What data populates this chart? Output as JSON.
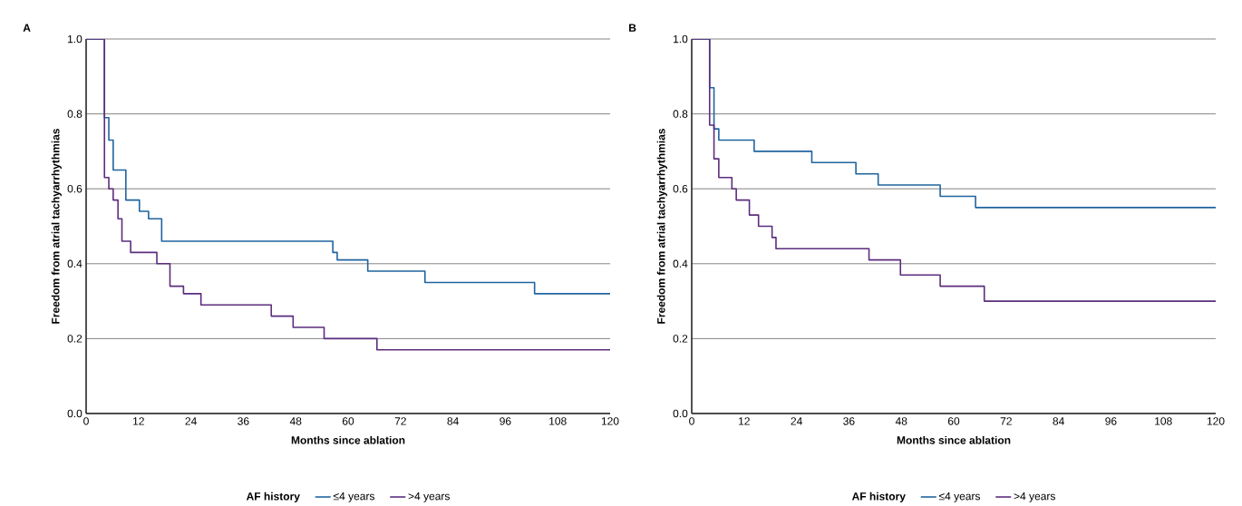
{
  "chart_data": [
    {
      "type": "step",
      "title": "A",
      "xlabel": "Months since ablation",
      "ylabel": "Freedom from atrial tachyarrhythmias",
      "legend_title": "AF history",
      "legend": "bottom",
      "grid": "y",
      "xlim": [
        0,
        120
      ],
      "ylim": [
        0,
        1
      ],
      "xticks": [
        0,
        12,
        24,
        36,
        48,
        60,
        72,
        84,
        96,
        108,
        120
      ],
      "yticks": [
        {
          "value": 0,
          "label": "0.0"
        },
        {
          "value": 0.2,
          "label": "0.2"
        },
        {
          "value": 0.4,
          "label": "0.4"
        },
        {
          "value": 0.6,
          "label": "0.6"
        },
        {
          "value": 0.8,
          "label": "0.8"
        },
        {
          "value": 1,
          "label": "1.0"
        }
      ],
      "series": [
        {
          "name": "≤4 years",
          "color": "#1f64a0",
          "x": [
            0,
            4.2,
            5.2,
            6.2,
            9.1,
            12.2,
            14.3,
            17.3,
            56.5,
            57.5,
            64.5,
            77.6,
            102.7,
            120
          ],
          "values": [
            1.0,
            0.79,
            0.73,
            0.65,
            0.57,
            0.54,
            0.52,
            0.46,
            0.43,
            0.41,
            0.38,
            0.35,
            0.32,
            0.32
          ]
        },
        {
          "name": ">4 years",
          "color": "#5c2d7e",
          "x": [
            0,
            4.2,
            5.2,
            6.2,
            7.3,
            8.2,
            10.2,
            16.2,
            19.2,
            22.3,
            26.3,
            42.4,
            47.4,
            54.5,
            66.6,
            120
          ],
          "values": [
            1.0,
            0.63,
            0.6,
            0.57,
            0.52,
            0.46,
            0.43,
            0.4,
            0.34,
            0.32,
            0.29,
            0.26,
            0.23,
            0.2,
            0.17,
            0.17
          ]
        }
      ]
    },
    {
      "type": "step",
      "title": "B",
      "xlabel": "Months since ablation",
      "ylabel": "Freedom from atrial tachyarrhythmias",
      "legend_title": "AF history",
      "legend": "bottom",
      "grid": "y",
      "xlim": [
        0,
        120
      ],
      "ylim": [
        0,
        1
      ],
      "xticks": [
        0,
        12,
        24,
        36,
        48,
        60,
        72,
        84,
        96,
        108,
        120
      ],
      "yticks": [
        {
          "value": 0,
          "label": "0.0"
        },
        {
          "value": 0.2,
          "label": "0.2"
        },
        {
          "value": 0.4,
          "label": "0.4"
        },
        {
          "value": 0.6,
          "label": "0.6"
        },
        {
          "value": 0.8,
          "label": "0.8"
        },
        {
          "value": 1,
          "label": "1.0"
        }
      ],
      "series": [
        {
          "name": "≤4 years",
          "color": "#1f64a0",
          "x": [
            0,
            4.1,
            5.1,
            6.2,
            14.3,
            27.5,
            37.6,
            42.7,
            56.9,
            65.0,
            120
          ],
          "values": [
            1.0,
            0.87,
            0.76,
            0.73,
            0.7,
            0.67,
            0.64,
            0.61,
            0.58,
            0.55,
            0.55
          ]
        },
        {
          "name": ">4 years",
          "color": "#5c2d7e",
          "x": [
            0,
            4.1,
            5.1,
            6.2,
            9.2,
            10.2,
            13.2,
            15.3,
            18.4,
            19.3,
            40.6,
            47.8,
            56.9,
            67.0,
            120
          ],
          "values": [
            1.0,
            0.77,
            0.68,
            0.63,
            0.6,
            0.57,
            0.53,
            0.5,
            0.47,
            0.44,
            0.41,
            0.37,
            0.34,
            0.3,
            0.3
          ]
        }
      ]
    }
  ]
}
